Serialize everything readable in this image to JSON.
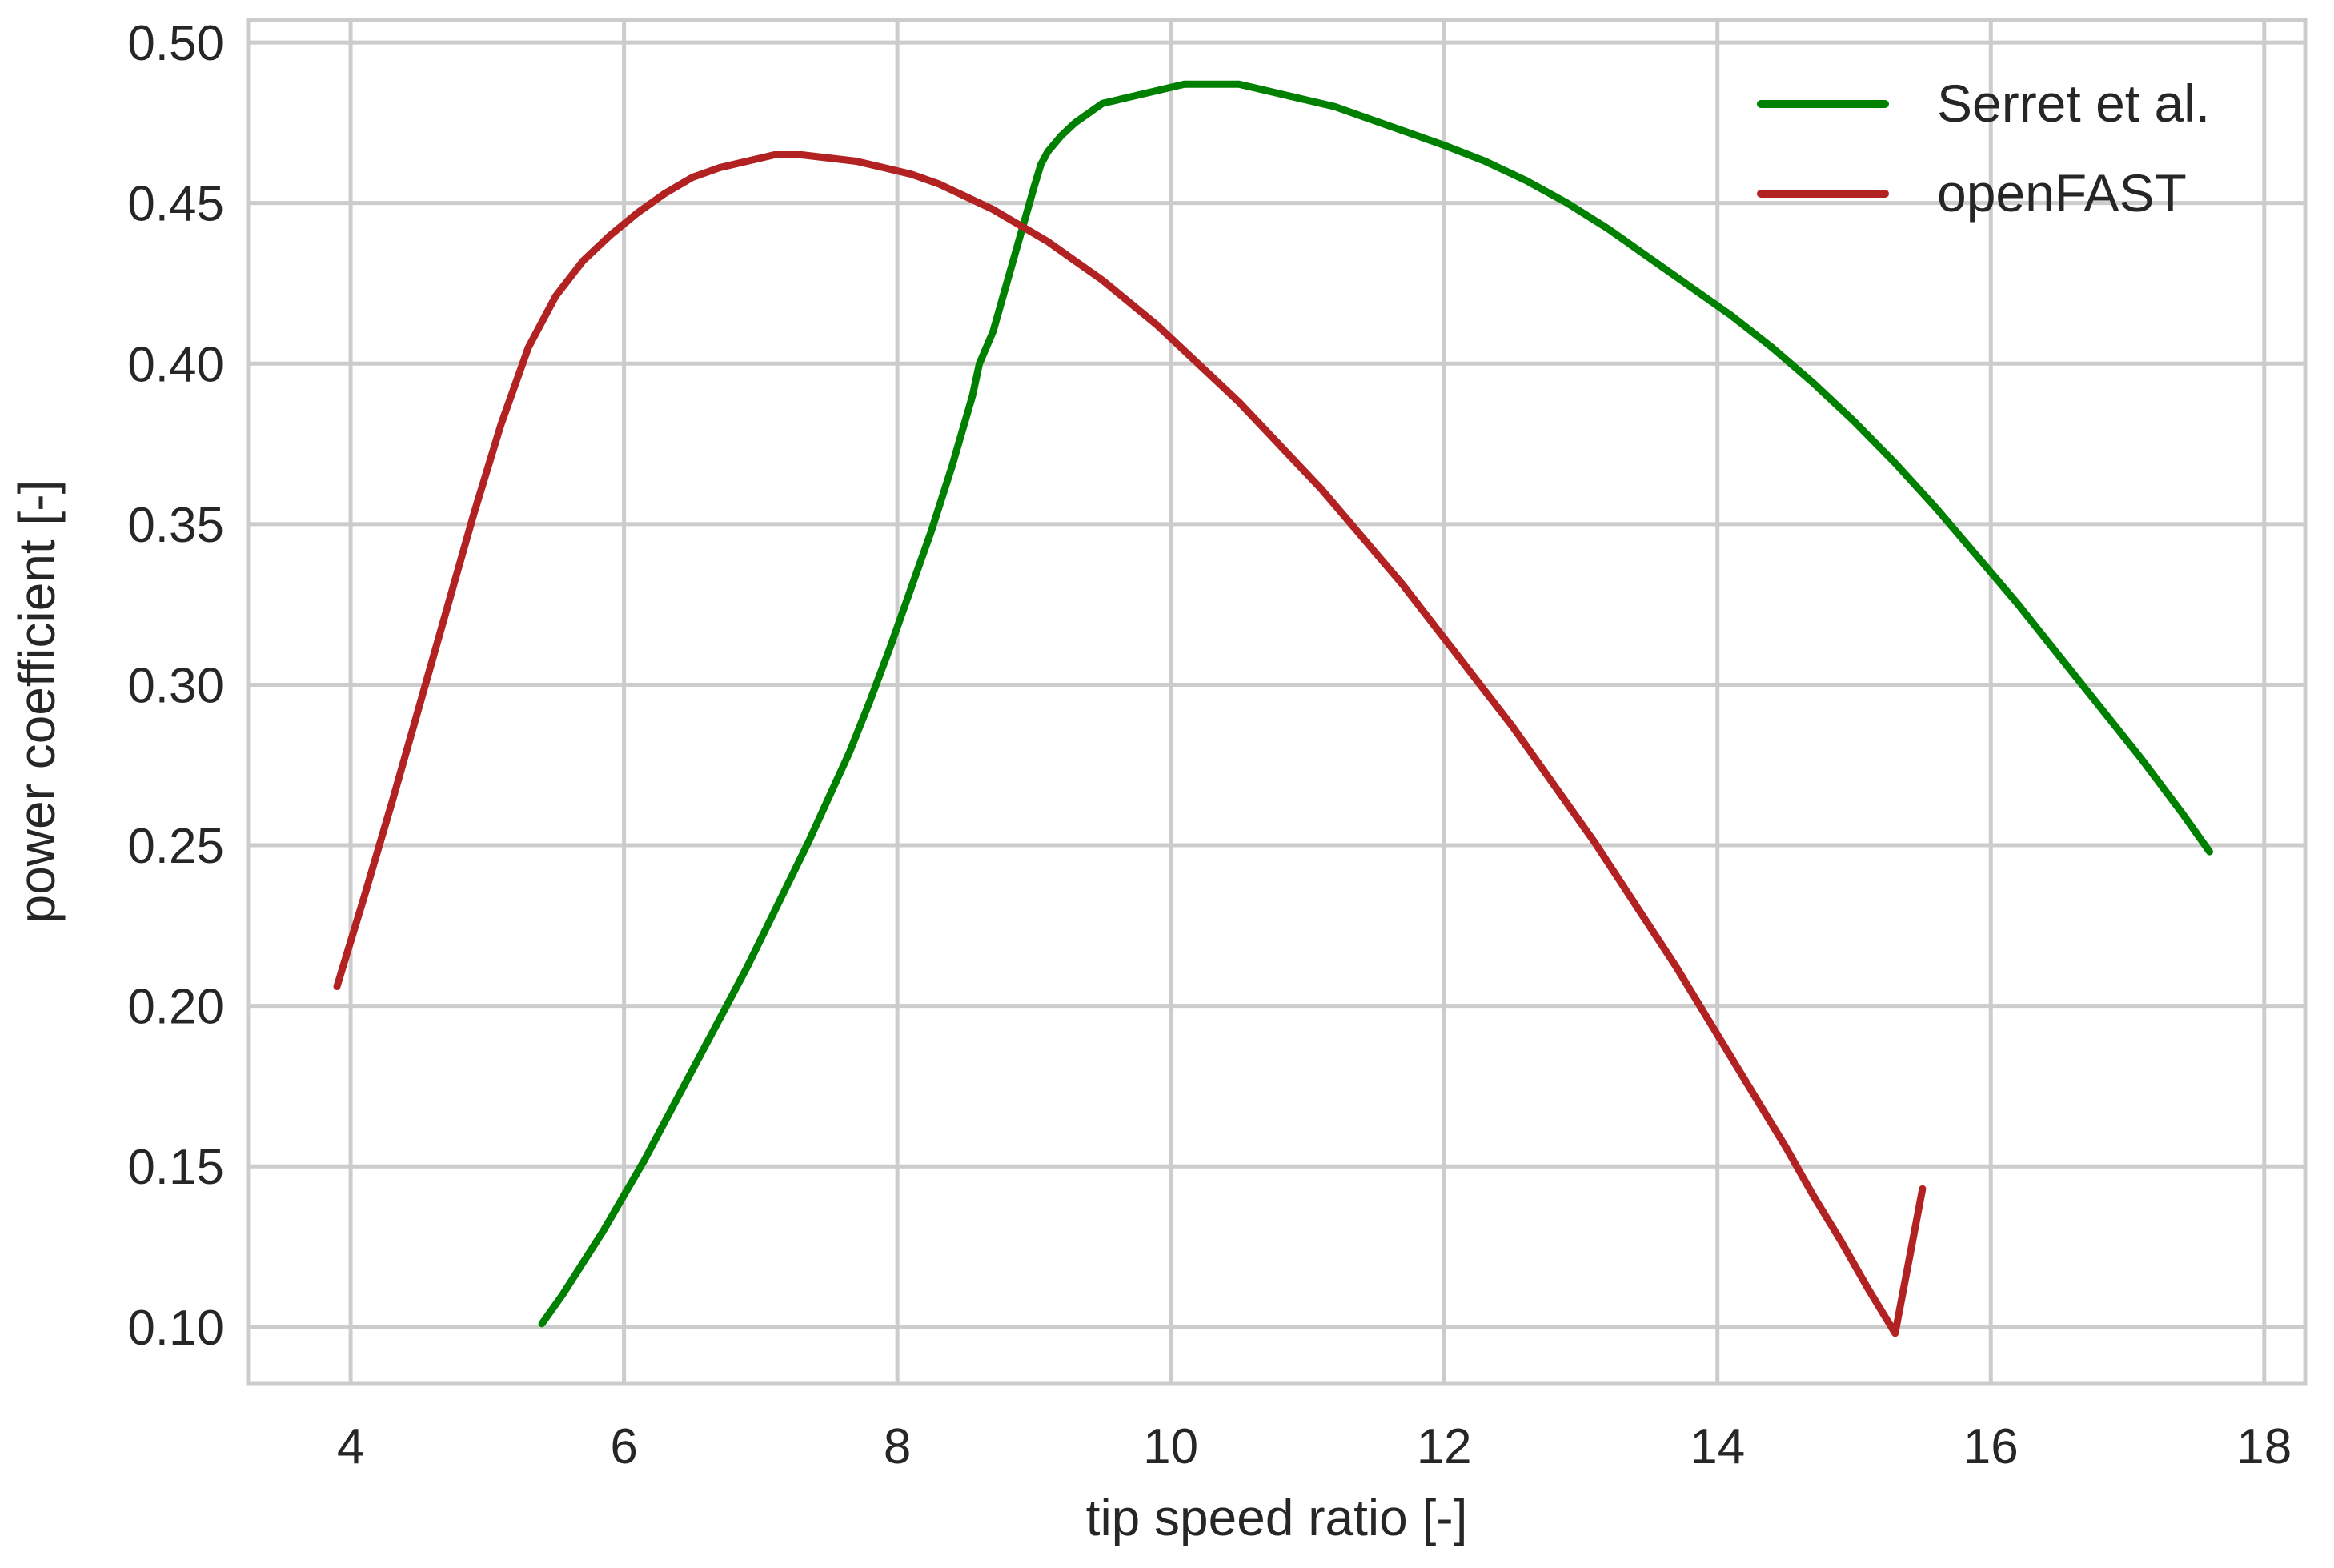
{
  "chart_data": {
    "type": "line",
    "title": "",
    "xlabel": "tip speed ratio [-]",
    "ylabel": "power coefficient [-]",
    "xlim": [
      3.25,
      18.3
    ],
    "ylim": [
      0.0825,
      0.507
    ],
    "xticks": [
      4,
      6,
      8,
      10,
      12,
      14,
      16,
      18
    ],
    "xtick_labels": [
      "4",
      "6",
      "8",
      "10",
      "12",
      "14",
      "16",
      "18"
    ],
    "yticks": [
      0.1,
      0.15,
      0.2,
      0.25,
      0.3,
      0.35,
      0.4,
      0.45,
      0.5
    ],
    "ytick_labels": [
      "0.10",
      "0.15",
      "0.20",
      "0.25",
      "0.30",
      "0.35",
      "0.40",
      "0.45",
      "0.50"
    ],
    "grid": true,
    "legend": "top-right",
    "series": [
      {
        "name": "Serret et al.",
        "color": "#008000",
        "x": [
          5.4,
          5.55,
          5.7,
          5.85,
          6.0,
          6.15,
          6.3,
          6.45,
          6.6,
          6.75,
          6.9,
          7.05,
          7.2,
          7.35,
          7.5,
          7.65,
          7.8,
          7.95,
          8.1,
          8.25,
          8.4,
          8.55,
          8.6,
          8.7,
          8.8,
          8.9,
          9.0,
          9.05,
          9.1,
          9.2,
          9.3,
          9.4,
          9.5,
          9.7,
          9.9,
          10.1,
          10.3,
          10.5,
          10.6,
          10.8,
          11.0,
          11.2,
          11.4,
          11.6,
          11.8,
          12.0,
          12.3,
          12.6,
          12.9,
          13.2,
          13.5,
          13.8,
          14.1,
          14.4,
          14.7,
          15.0,
          15.3,
          15.6,
          15.9,
          16.2,
          16.5,
          16.8,
          17.1,
          17.4,
          17.6
        ],
        "y": [
          0.101,
          0.11,
          0.12,
          0.13,
          0.141,
          0.152,
          0.164,
          0.176,
          0.188,
          0.2,
          0.212,
          0.225,
          0.238,
          0.251,
          0.265,
          0.279,
          0.295,
          0.312,
          0.33,
          0.348,
          0.368,
          0.39,
          0.4,
          0.41,
          0.425,
          0.44,
          0.455,
          0.462,
          0.466,
          0.471,
          0.475,
          0.478,
          0.481,
          0.483,
          0.485,
          0.487,
          0.487,
          0.487,
          0.486,
          0.484,
          0.482,
          0.48,
          0.477,
          0.474,
          0.471,
          0.468,
          0.463,
          0.457,
          0.45,
          0.442,
          0.433,
          0.424,
          0.415,
          0.405,
          0.394,
          0.382,
          0.369,
          0.355,
          0.34,
          0.325,
          0.309,
          0.293,
          0.277,
          0.26,
          0.248
        ]
      },
      {
        "name": "openFAST",
        "color": "#b22222",
        "x": [
          3.9,
          4.1,
          4.3,
          4.5,
          4.7,
          4.9,
          5.1,
          5.3,
          5.5,
          5.7,
          5.9,
          6.1,
          6.3,
          6.5,
          6.7,
          6.9,
          7.1,
          7.3,
          7.5,
          7.7,
          7.9,
          8.1,
          8.3,
          8.5,
          8.7,
          8.9,
          9.1,
          9.3,
          9.5,
          9.7,
          9.9,
          10.1,
          10.3,
          10.5,
          10.7,
          10.9,
          11.1,
          11.3,
          11.5,
          11.7,
          11.9,
          12.1,
          12.3,
          12.5,
          12.7,
          12.9,
          13.1,
          13.3,
          13.5,
          13.7,
          13.9,
          14.1,
          14.3,
          14.5,
          14.7,
          14.9,
          15.1,
          15.3,
          15.5
        ],
        "y": [
          0.206,
          0.234,
          0.263,
          0.293,
          0.323,
          0.353,
          0.381,
          0.405,
          0.421,
          0.432,
          0.44,
          0.447,
          0.453,
          0.458,
          0.461,
          0.463,
          0.465,
          0.465,
          0.464,
          0.463,
          0.461,
          0.459,
          0.456,
          0.452,
          0.448,
          0.443,
          0.438,
          0.432,
          0.426,
          0.419,
          0.412,
          0.404,
          0.396,
          0.388,
          0.379,
          0.37,
          0.361,
          0.351,
          0.341,
          0.331,
          0.32,
          0.309,
          0.298,
          0.287,
          0.275,
          0.263,
          0.251,
          0.238,
          0.225,
          0.212,
          0.198,
          0.184,
          0.17,
          0.156,
          0.141,
          0.127,
          0.112,
          0.098,
          0.143
        ]
      }
    ]
  }
}
